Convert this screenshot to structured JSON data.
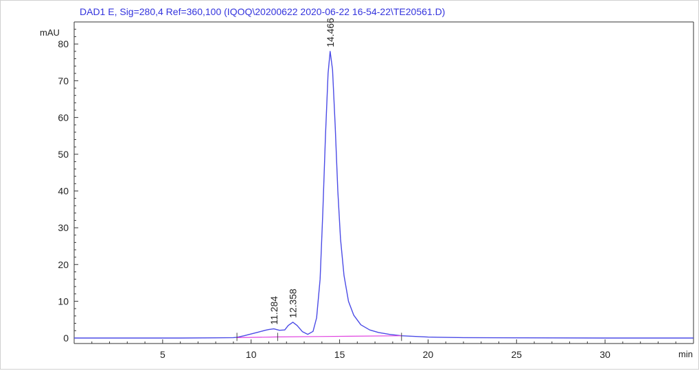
{
  "chart_data": {
    "type": "line",
    "title": "DAD1 E, Sig=280,4 Ref=360,100 (IQOQ\\20200622 2020-06-22 16-54-22\\TE20561.D)",
    "ylabel": "mAU",
    "xlabel": "min",
    "xlim": [
      0,
      35
    ],
    "ylim": [
      -1.5,
      86
    ],
    "x_ticks": [
      5,
      10,
      15,
      20,
      25,
      30
    ],
    "y_ticks": [
      0,
      10,
      20,
      30,
      40,
      50,
      60,
      70,
      80
    ],
    "grid": false,
    "series": [
      {
        "color": "#4a4ae6",
        "x": [
          0,
          2,
          4,
          6,
          8,
          9,
          9.2,
          9.6,
          10,
          10.4,
          10.8,
          11,
          11.284,
          11.6,
          11.9,
          12.1,
          12.358,
          12.6,
          12.9,
          13.2,
          13.5,
          13.7,
          13.9,
          14.05,
          14.2,
          14.35,
          14.466,
          14.6,
          14.75,
          14.9,
          15.05,
          15.25,
          15.5,
          15.8,
          16.2,
          16.7,
          17.2,
          17.8,
          18.5,
          20,
          22,
          25,
          30,
          35
        ],
        "y": [
          0,
          0,
          0,
          0,
          0.05,
          0.1,
          0.2,
          0.6,
          1.1,
          1.6,
          2.1,
          2.3,
          2.5,
          2.1,
          2.2,
          3.4,
          4.3,
          3.4,
          1.7,
          1.0,
          1.8,
          5.5,
          16,
          34,
          55,
          72,
          78,
          73,
          58,
          40,
          27,
          17,
          10,
          6.2,
          3.6,
          2.2,
          1.5,
          1.0,
          0.6,
          0.25,
          0.1,
          0.05,
          0,
          0
        ]
      },
      {
        "color": "#e040e0",
        "x": [
          9.2,
          11.5,
          13.8,
          18.5
        ],
        "y": [
          0.1,
          0.3,
          0.4,
          0.6
        ]
      }
    ],
    "peaks": [
      {
        "x": 11.284,
        "y": 2.5,
        "label": "11.284"
      },
      {
        "x": 12.358,
        "y": 4.3,
        "label": "12.358"
      },
      {
        "x": 14.466,
        "y": 78,
        "label": "14.466"
      }
    ],
    "baseline_markers": [
      9.2,
      11.5,
      18.5
    ]
  }
}
